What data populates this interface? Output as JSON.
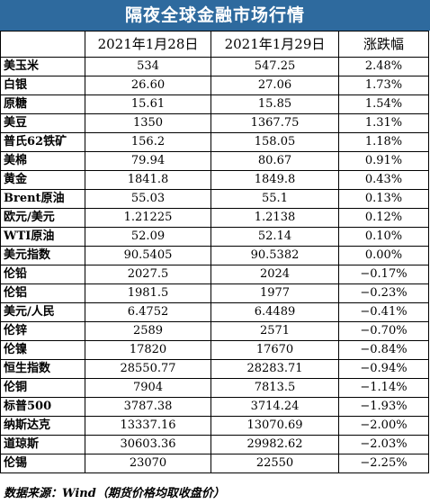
{
  "title": "隔夜全球金融市场行情",
  "headers": [
    "",
    "2021年1月28日",
    "2021年1月29日",
    "涨跌幅"
  ],
  "rows": [
    {
      "name": "美玉米",
      "d1": "534",
      "d2": "547.25",
      "chg": "2.48%"
    },
    {
      "name": "白银",
      "d1": "26.60",
      "d2": "27.06",
      "chg": "1.73%"
    },
    {
      "name": "原糖",
      "d1": "15.61",
      "d2": "15.85",
      "chg": "1.54%"
    },
    {
      "name": "美豆",
      "d1": "1350",
      "d2": "1367.75",
      "chg": "1.31%"
    },
    {
      "name": "普氏62铁矿",
      "d1": "156.2",
      "d2": "158.05",
      "chg": "1.18%"
    },
    {
      "name": "美棉",
      "d1": "79.94",
      "d2": "80.67",
      "chg": "0.91%"
    },
    {
      "name": "黄金",
      "d1": "1841.8",
      "d2": "1849.8",
      "chg": "0.43%"
    },
    {
      "name": "Brent原油",
      "d1": "55.03",
      "d2": "55.1",
      "chg": "0.13%"
    },
    {
      "name": "欧元/美元",
      "d1": "1.21225",
      "d2": "1.2138",
      "chg": "0.12%"
    },
    {
      "name": "WTI原油",
      "d1": "52.09",
      "d2": "52.14",
      "chg": "0.10%"
    },
    {
      "name": "美元指数",
      "d1": "90.5405",
      "d2": "90.5382",
      "chg": "0.00%"
    },
    {
      "name": "伦铅",
      "d1": "2027.5",
      "d2": "2024",
      "chg": "−0.17%"
    },
    {
      "name": "伦铝",
      "d1": "1981.5",
      "d2": "1977",
      "chg": "−0.23%"
    },
    {
      "name": "美元/人民",
      "d1": "6.4752",
      "d2": "6.4489",
      "chg": "−0.41%"
    },
    {
      "name": "伦锌",
      "d1": "2589",
      "d2": "2571",
      "chg": "−0.70%"
    },
    {
      "name": "伦镍",
      "d1": "17820",
      "d2": "17670",
      "chg": "−0.84%"
    },
    {
      "name": "恒生指数",
      "d1": "28550.77",
      "d2": "28283.71",
      "chg": "−0.94%"
    },
    {
      "name": "伦铜",
      "d1": "7904",
      "d2": "7813.5",
      "chg": "−1.14%"
    },
    {
      "name": "标普500",
      "d1": "3787.38",
      "d2": "3714.24",
      "chg": "−1.93%"
    },
    {
      "name": "纳斯达克",
      "d1": "13337.16",
      "d2": "13070.69",
      "chg": "−2.00%"
    },
    {
      "name": "道琼斯",
      "d1": "30603.36",
      "d2": "29982.62",
      "chg": "−2.03%"
    },
    {
      "name": "伦锡",
      "d1": "23070",
      "d2": "22550",
      "chg": "−2.25%"
    }
  ],
  "source": "数据来源：Wind（期货价格均取收盘价）",
  "colors": {
    "title_bg": "#2e6a9e",
    "title_text": "#ffffff",
    "border": "#000000"
  }
}
